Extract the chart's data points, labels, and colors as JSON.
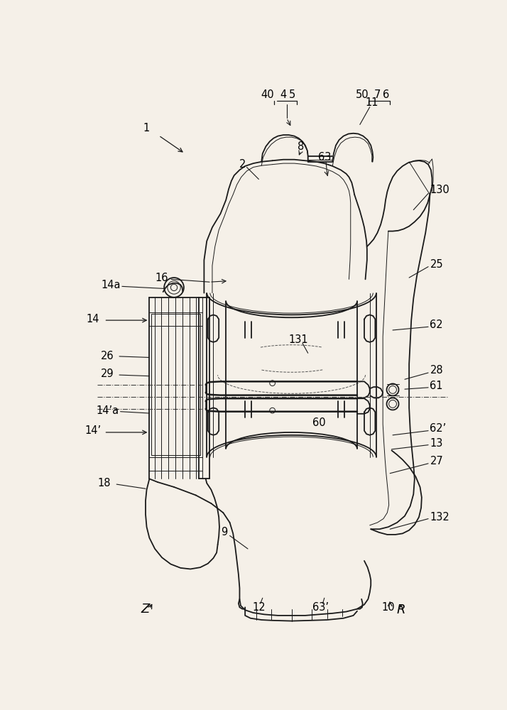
{
  "bg_color": "#f5f0e8",
  "line_color": "#1a1a1a",
  "lw_main": 1.3,
  "lw_thin": 0.7,
  "lw_thick": 1.8,
  "fs_label": 10.5,
  "labels": {
    "1": [
      155,
      85,
      "1"
    ],
    "40": [
      388,
      22,
      "40"
    ],
    "4": [
      406,
      22,
      "4"
    ],
    "5": [
      422,
      22,
      "5"
    ],
    "11": [
      548,
      28,
      "11"
    ],
    "50": [
      567,
      22,
      "50"
    ],
    "7": [
      586,
      22,
      "7"
    ],
    "6": [
      603,
      22,
      "6"
    ],
    "2": [
      330,
      148,
      "2"
    ],
    "8": [
      432,
      118,
      "8"
    ],
    "63": [
      475,
      138,
      "63"
    ],
    "130": [
      666,
      195,
      "130"
    ],
    "25": [
      666,
      330,
      "25"
    ],
    "16": [
      192,
      355,
      "16"
    ],
    "131": [
      430,
      468,
      "131"
    ],
    "62": [
      666,
      440,
      "62"
    ],
    "14a": [
      88,
      368,
      "14a"
    ],
    "14": [
      55,
      430,
      "14"
    ],
    "26": [
      80,
      498,
      "26"
    ],
    "29": [
      80,
      530,
      "29"
    ],
    "28": [
      666,
      525,
      "28"
    ],
    "61": [
      666,
      553,
      "61"
    ],
    "14pa": [
      82,
      598,
      "14’a"
    ],
    "14p": [
      55,
      635,
      "14’"
    ],
    "62p": [
      666,
      630,
      "62’"
    ],
    "13": [
      666,
      658,
      "13"
    ],
    "60": [
      468,
      620,
      "60"
    ],
    "27": [
      666,
      690,
      "27"
    ],
    "18": [
      75,
      730,
      "18"
    ],
    "9": [
      295,
      820,
      "9"
    ],
    "12": [
      358,
      958,
      "12"
    ],
    "63p": [
      472,
      958,
      "63’"
    ],
    "132": [
      666,
      792,
      "132"
    ],
    "10": [
      595,
      958,
      "10"
    ],
    "Z": [
      152,
      960,
      "Z"
    ],
    "R": [
      618,
      963,
      "R"
    ]
  }
}
